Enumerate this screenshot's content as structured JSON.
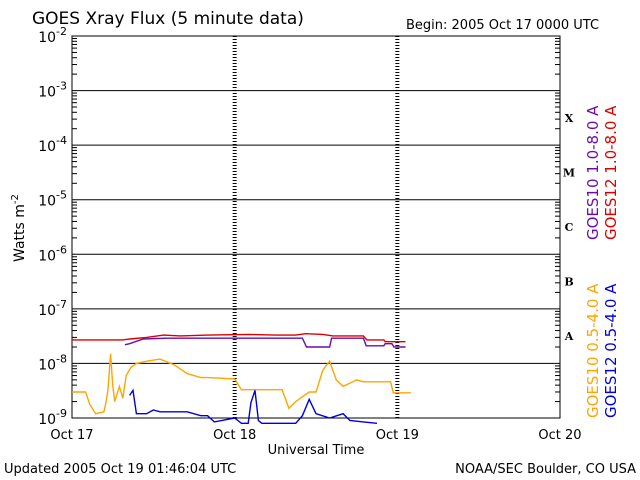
{
  "chart_data": {
    "type": "line",
    "title": "GOES Xray Flux (5 minute data)",
    "begin": "Begin:  2005 Oct 17 0000 UTC",
    "xlabel": "Universal Time",
    "ylabel_main": "Watts m",
    "ylabel_exp": "-2",
    "updated": "Updated 2005 Oct 19 01:46:04 UTC",
    "credit": "NOAA/SEC Boulder, CO USA",
    "x_ticks": [
      "Oct 17",
      "Oct 18",
      "Oct 19",
      "Oct 20"
    ],
    "x_range_hours": [
      0,
      72
    ],
    "y_scale": "log",
    "y_range": [
      1e-09,
      0.01
    ],
    "y_ticks": [
      {
        "base": "10",
        "exp": "-2"
      },
      {
        "base": "10",
        "exp": "-3"
      },
      {
        "base": "10",
        "exp": "-4"
      },
      {
        "base": "10",
        "exp": "-5"
      },
      {
        "base": "10",
        "exp": "-6"
      },
      {
        "base": "10",
        "exp": "-7"
      },
      {
        "base": "10",
        "exp": "-8"
      },
      {
        "base": "10",
        "exp": "-9"
      }
    ],
    "flare_classes": [
      "X",
      "M",
      "C",
      "B",
      "A"
    ],
    "series": [
      {
        "name": "GOES10 1.0-8.0 A",
        "color": "#6a0dad",
        "points": [
          [
            7.8,
            2.2e-08
          ],
          [
            8.5,
            2.3e-08
          ],
          [
            10.5,
            2.8e-08
          ],
          [
            14,
            2.9e-08
          ],
          [
            18,
            2.9e-08
          ],
          [
            22,
            2.9e-08
          ],
          [
            26,
            2.9e-08
          ],
          [
            30,
            2.9e-08
          ],
          [
            34,
            2.9e-08
          ],
          [
            34.6,
            2e-08
          ],
          [
            38,
            2e-08
          ],
          [
            38.3,
            2.9e-08
          ],
          [
            43,
            2.9e-08
          ],
          [
            43.4,
            2.1e-08
          ],
          [
            46,
            2.1e-08
          ],
          [
            46.2,
            2.3e-08
          ],
          [
            47.2,
            2.3e-08
          ],
          [
            47.5,
            2e-08
          ],
          [
            49.2,
            2e-08
          ]
        ]
      },
      {
        "name": "GOES12 1.0-8.0 A",
        "color": "#dd0000",
        "points": [
          [
            0,
            2.7e-08
          ],
          [
            7.5,
            2.7e-08
          ],
          [
            8.5,
            2.8e-08
          ],
          [
            11,
            3e-08
          ],
          [
            13.5,
            3.3e-08
          ],
          [
            16,
            3.2e-08
          ],
          [
            20,
            3.3e-08
          ],
          [
            26,
            3.4e-08
          ],
          [
            30,
            3.3e-08
          ],
          [
            33,
            3.3e-08
          ],
          [
            34.5,
            3.5e-08
          ],
          [
            37,
            3.4e-08
          ],
          [
            38.5,
            3.2e-08
          ],
          [
            43,
            3.2e-08
          ],
          [
            43.5,
            2.7e-08
          ],
          [
            46,
            2.7e-08
          ],
          [
            46.2,
            2.5e-08
          ],
          [
            49.2,
            2.5e-08
          ]
        ]
      },
      {
        "name": "GOES10 0.5-4.0 A",
        "color": "#ffa500",
        "points": [
          [
            0,
            3e-09
          ],
          [
            2.0,
            3e-09
          ],
          [
            2.6,
            1.8e-09
          ],
          [
            3.5,
            1.2e-09
          ],
          [
            4.7,
            1.3e-09
          ],
          [
            5.0,
            1.9e-09
          ],
          [
            5.3,
            3.2e-09
          ],
          [
            5.7,
            1.5e-08
          ],
          [
            6.0,
            4e-09
          ],
          [
            6.3,
            2e-09
          ],
          [
            7.0,
            3.8e-09
          ],
          [
            7.5,
            2.3e-09
          ],
          [
            8.0,
            6e-09
          ],
          [
            8.7,
            8.5e-09
          ],
          [
            9.5,
            1e-08
          ],
          [
            11,
            1.1e-08
          ],
          [
            13,
            1.2e-08
          ],
          [
            15,
            9.5e-09
          ],
          [
            17,
            6.5e-09
          ],
          [
            19,
            5.5e-09
          ],
          [
            20,
            5.5e-09
          ],
          [
            24,
            5.2e-09
          ],
          [
            25,
            3.3e-09
          ],
          [
            31,
            3.3e-09
          ],
          [
            32,
            1.5e-09
          ],
          [
            33,
            2e-09
          ],
          [
            35,
            3e-09
          ],
          [
            36,
            3e-09
          ],
          [
            37,
            7.5e-09
          ],
          [
            38,
            1.1e-08
          ],
          [
            39,
            5e-09
          ],
          [
            40,
            3.8e-09
          ],
          [
            42,
            5e-09
          ],
          [
            43,
            4.6e-09
          ],
          [
            47,
            4.6e-09
          ],
          [
            47.4,
            2.9e-09
          ],
          [
            50,
            2.9e-09
          ]
        ]
      },
      {
        "name": "GOES12 0.5-4.0 A",
        "color": "#0000dd",
        "points": [
          [
            8.5,
            2.6e-09
          ],
          [
            9.0,
            3.2e-09
          ],
          [
            9.5,
            1.2e-09
          ],
          [
            11,
            1.2e-09
          ],
          [
            12,
            1.4e-09
          ],
          [
            13,
            1.3e-09
          ],
          [
            15,
            1.3e-09
          ],
          [
            17,
            1.3e-09
          ],
          [
            19,
            1.1e-09
          ],
          [
            20,
            1.1e-09
          ],
          [
            21,
            8.5e-10
          ],
          [
            24,
            1e-09
          ],
          [
            25,
            8e-10
          ],
          [
            26,
            8e-10
          ],
          [
            26.4,
            1.9e-09
          ],
          [
            27,
            3.2e-09
          ],
          [
            27.5,
            9e-10
          ],
          [
            28,
            8e-10
          ],
          [
            33,
            8e-10
          ],
          [
            34,
            1.1e-09
          ],
          [
            35,
            2.2e-09
          ],
          [
            36,
            1.2e-09
          ],
          [
            38,
            1e-09
          ],
          [
            40,
            1.2e-09
          ],
          [
            41,
            9e-10
          ],
          [
            43,
            8.5e-10
          ],
          [
            45,
            8e-10
          ]
        ]
      }
    ],
    "grid": "horizontal decade lines",
    "legend": "right, vertical"
  }
}
